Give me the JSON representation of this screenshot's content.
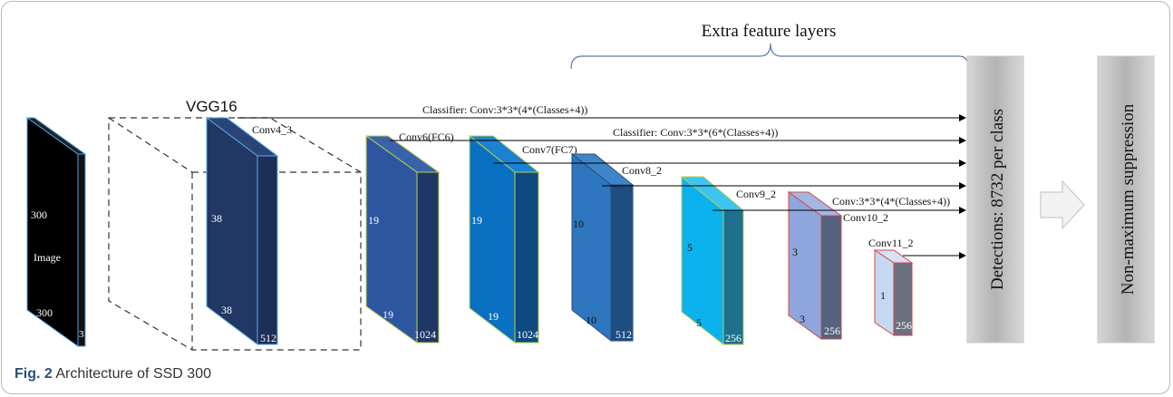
{
  "header": {
    "extra_layers": "Extra feature layers",
    "vgg": "VGG16"
  },
  "image_block": {
    "dim1": "300",
    "label": "Image",
    "dim2": "300",
    "channels": "3"
  },
  "conv4": {
    "name": "Conv4_3",
    "dim1": "38",
    "dim2": "38",
    "channels": "512"
  },
  "conv6": {
    "name": "Conv6(FC6)",
    "dim1": "19",
    "dim2": "19",
    "channels": "1024"
  },
  "conv7": {
    "name": "Conv7(FC7)",
    "dim1": "19",
    "dim2": "19",
    "channels": "1024"
  },
  "conv8": {
    "name": "Conv8_2",
    "dim1": "10",
    "dim2": "10",
    "channels": "512"
  },
  "conv9": {
    "name": "Conv9_2",
    "dim1": "5",
    "dim2": "5",
    "channels": "256"
  },
  "conv10": {
    "name": "Conv10_2",
    "dim1": "3",
    "dim2": "3",
    "channels": "256"
  },
  "conv11": {
    "name": "Conv11_2",
    "dim1": "1",
    "channels": "256"
  },
  "classifiers": {
    "c1": "Classifier: Conv:3*3*(4*(Classes+4))",
    "c2": "Classifier: Conv:3*3*(6*(Classes+4))",
    "c3": "Conv:3*3*(4*(Classes+4))"
  },
  "detections": "Detections: 8732 per class",
  "nms": "Non-maximum suppression",
  "caption": {
    "label": "Fig. 2",
    "text": "Architecture of SSD 300"
  },
  "colors": {
    "image": "#000000",
    "conv4": "#213764",
    "conv6": "#2e56a0",
    "conv7": "#0a70c2",
    "conv8": "#2e77be",
    "conv9": "#0bb2ee",
    "conv10": "#8ea6dd",
    "conv11": "#c5d8f1"
  }
}
